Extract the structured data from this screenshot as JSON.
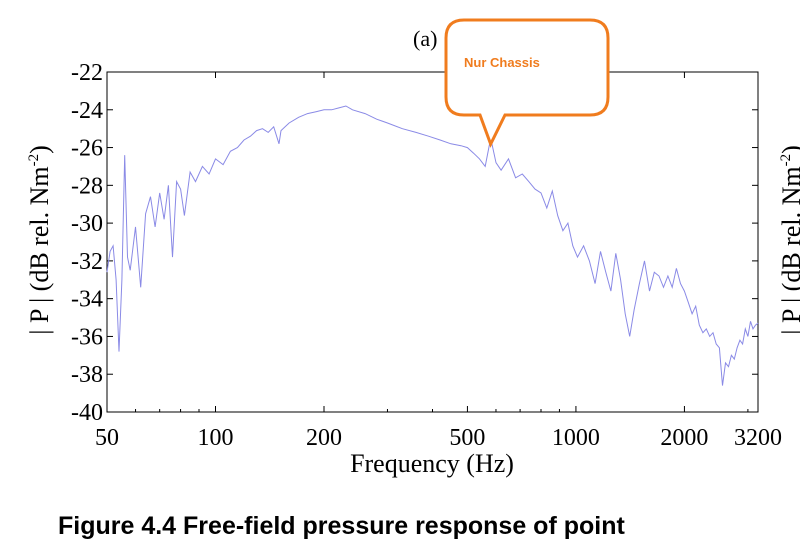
{
  "chart_data": {
    "type": "line",
    "panel_label": "(a)",
    "xlabel": "Frequency  (Hz)",
    "ylabel": "| P | (dB rel. Nm",
    "ylabel_sup": "-2",
    "ylabel_close": ")",
    "xscale": "log",
    "xlim": [
      50,
      3200
    ],
    "ylim": [
      -40,
      -22
    ],
    "xticks": [
      50,
      100,
      200,
      500,
      1000,
      2000,
      3200
    ],
    "xtick_labels": [
      "50",
      "100",
      "200",
      "500",
      "1000",
      "2000",
      "3200"
    ],
    "yticks": [
      -22,
      -24,
      -26,
      -28,
      -30,
      -32,
      -34,
      -36,
      -38,
      -40
    ],
    "ytick_labels": [
      "-22",
      "-24",
      "-26",
      "-28",
      "-30",
      "-32",
      "-34",
      "-36",
      "-38",
      "-40"
    ],
    "grid": false,
    "series": [
      {
        "color": "#8a8ae6",
        "points": [
          [
            50,
            -32.6
          ],
          [
            51,
            -31.5
          ],
          [
            52,
            -31.2
          ],
          [
            53,
            -33.0
          ],
          [
            54,
            -36.8
          ],
          [
            55,
            -33.0
          ],
          [
            56,
            -26.4
          ],
          [
            57,
            -31.8
          ],
          [
            58,
            -32.5
          ],
          [
            60,
            -30.2
          ],
          [
            62,
            -33.4
          ],
          [
            64,
            -29.5
          ],
          [
            66,
            -28.6
          ],
          [
            68,
            -30.2
          ],
          [
            70,
            -28.4
          ],
          [
            72,
            -29.8
          ],
          [
            74,
            -28.0
          ],
          [
            76,
            -31.8
          ],
          [
            78,
            -27.8
          ],
          [
            80,
            -28.2
          ],
          [
            82,
            -29.6
          ],
          [
            85,
            -27.3
          ],
          [
            88,
            -27.8
          ],
          [
            92,
            -27.0
          ],
          [
            96,
            -27.4
          ],
          [
            100,
            -26.6
          ],
          [
            105,
            -26.9
          ],
          [
            110,
            -26.2
          ],
          [
            115,
            -26.0
          ],
          [
            120,
            -25.6
          ],
          [
            125,
            -25.4
          ],
          [
            130,
            -25.1
          ],
          [
            135,
            -25.0
          ],
          [
            140,
            -25.2
          ],
          [
            145,
            -24.9
          ],
          [
            150,
            -25.8
          ],
          [
            152,
            -25.1
          ],
          [
            160,
            -24.7
          ],
          [
            170,
            -24.4
          ],
          [
            180,
            -24.2
          ],
          [
            190,
            -24.1
          ],
          [
            200,
            -24.0
          ],
          [
            210,
            -24.0
          ],
          [
            220,
            -23.9
          ],
          [
            230,
            -23.8
          ],
          [
            240,
            -24.0
          ],
          [
            260,
            -24.2
          ],
          [
            280,
            -24.5
          ],
          [
            300,
            -24.7
          ],
          [
            330,
            -25.0
          ],
          [
            360,
            -25.2
          ],
          [
            390,
            -25.4
          ],
          [
            420,
            -25.6
          ],
          [
            450,
            -25.8
          ],
          [
            480,
            -25.9
          ],
          [
            500,
            -26.0
          ],
          [
            520,
            -26.3
          ],
          [
            540,
            -26.6
          ],
          [
            560,
            -27.0
          ],
          [
            580,
            -25.5
          ],
          [
            600,
            -26.8
          ],
          [
            620,
            -27.2
          ],
          [
            650,
            -26.6
          ],
          [
            680,
            -27.6
          ],
          [
            710,
            -27.4
          ],
          [
            740,
            -27.8
          ],
          [
            770,
            -28.2
          ],
          [
            800,
            -28.4
          ],
          [
            830,
            -29.2
          ],
          [
            860,
            -28.3
          ],
          [
            890,
            -29.6
          ],
          [
            920,
            -30.4
          ],
          [
            950,
            -30.0
          ],
          [
            980,
            -31.2
          ],
          [
            1010,
            -31.8
          ],
          [
            1050,
            -31.2
          ],
          [
            1090,
            -32.0
          ],
          [
            1130,
            -33.2
          ],
          [
            1170,
            -31.5
          ],
          [
            1210,
            -32.6
          ],
          [
            1250,
            -33.6
          ],
          [
            1290,
            -31.6
          ],
          [
            1330,
            -33.0
          ],
          [
            1370,
            -34.8
          ],
          [
            1410,
            -36.0
          ],
          [
            1450,
            -34.6
          ],
          [
            1500,
            -33.2
          ],
          [
            1550,
            -32.0
          ],
          [
            1600,
            -33.6
          ],
          [
            1650,
            -32.6
          ],
          [
            1700,
            -32.8
          ],
          [
            1750,
            -33.4
          ],
          [
            1800,
            -32.8
          ],
          [
            1850,
            -33.4
          ],
          [
            1900,
            -32.4
          ],
          [
            1950,
            -33.2
          ],
          [
            2000,
            -33.6
          ],
          [
            2050,
            -34.2
          ],
          [
            2100,
            -34.8
          ],
          [
            2150,
            -34.4
          ],
          [
            2200,
            -35.4
          ],
          [
            2250,
            -35.8
          ],
          [
            2300,
            -35.6
          ],
          [
            2350,
            -36.0
          ],
          [
            2400,
            -35.8
          ],
          [
            2450,
            -36.4
          ],
          [
            2500,
            -36.6
          ],
          [
            2550,
            -38.6
          ],
          [
            2600,
            -37.4
          ],
          [
            2650,
            -37.6
          ],
          [
            2700,
            -37.0
          ],
          [
            2750,
            -37.2
          ],
          [
            2800,
            -36.6
          ],
          [
            2850,
            -36.2
          ],
          [
            2900,
            -36.4
          ],
          [
            2950,
            -35.6
          ],
          [
            3000,
            -36.0
          ],
          [
            3050,
            -35.2
          ],
          [
            3100,
            -35.6
          ],
          [
            3150,
            -35.4
          ],
          [
            3200,
            -35.3
          ]
        ]
      }
    ],
    "annotation": {
      "text": "Nur Chassis",
      "target": [
        580,
        -25.5
      ],
      "color": "#f07c1e"
    }
  },
  "caption": "Figure 4.4 Free-field pressure response of point"
}
